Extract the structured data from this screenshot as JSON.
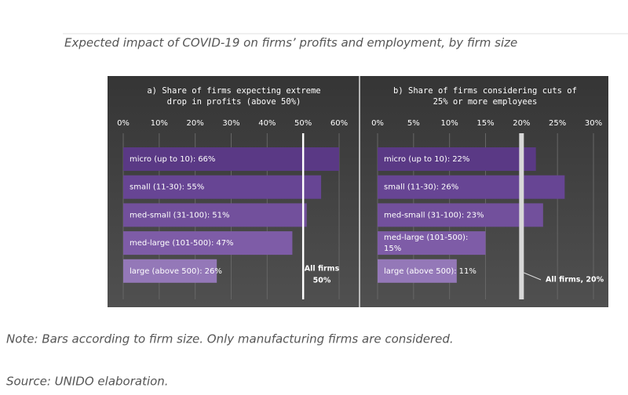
{
  "caption": "Expected impact of COVID-19 on firms’ profits and employment, by firm size",
  "note": "Note: Bars according to firm size. Only manufacturing firms are considered.",
  "source": "Source: UNIDO elaboration.",
  "chart_data": [
    {
      "type": "hbar",
      "title": [
        "a) Share of firms expecting extreme",
        "drop in profits (above 50%)"
      ],
      "categories": [
        "micro (up to 10):",
        "small (11-30):",
        "med-small (31-100):",
        "med-large (101-500):",
        "large (above 500):"
      ],
      "values": [
        66,
        55,
        51,
        47,
        26
      ],
      "value_labels": [
        "66%",
        "55%",
        "51%",
        "47%",
        "26%"
      ],
      "colors": [
        "#5a3985",
        "#674594",
        "#72509c",
        "#7e5ca7",
        "#9478b8"
      ],
      "xlim": [
        0,
        60
      ],
      "xticks": [
        {
          "value": 0,
          "label": "0%"
        },
        {
          "value": 10,
          "label": "10%"
        },
        {
          "value": 20,
          "label": "20%"
        },
        {
          "value": 30,
          "label": "30%"
        },
        {
          "value": 40,
          "label": "40%"
        },
        {
          "value": 50,
          "label": "50%"
        },
        {
          "value": 60,
          "label": "60%"
        }
      ],
      "grid": true,
      "reference": {
        "value": 50,
        "label": [
          "All firms",
          "50%"
        ]
      }
    },
    {
      "type": "hbar",
      "title": [
        "b) Share of firms considering cuts of",
        "25% or more employees"
      ],
      "categories": [
        "micro (up to 10):",
        "small (11-30):",
        "med-small (31-100):",
        "med-large (101-500):",
        "large (above 500):"
      ],
      "values": [
        22,
        26,
        23,
        15,
        11
      ],
      "value_labels": [
        "22%",
        "26%",
        "23%",
        "15%",
        "11%"
      ],
      "colors": [
        "#5a3985",
        "#674594",
        "#72509c",
        "#7e5ca7",
        "#9478b8"
      ],
      "xlim": [
        0,
        30
      ],
      "xticks": [
        {
          "value": 0,
          "label": "0%"
        },
        {
          "value": 5,
          "label": "5%"
        },
        {
          "value": 10,
          "label": "10%"
        },
        {
          "value": 15,
          "label": "15%"
        },
        {
          "value": 20,
          "label": "20%"
        },
        {
          "value": 25,
          "label": "25%"
        },
        {
          "value": 30,
          "label": "30%"
        }
      ],
      "grid": true,
      "reference": {
        "value": 20,
        "label": [
          "All firms, 20%"
        ]
      }
    }
  ]
}
